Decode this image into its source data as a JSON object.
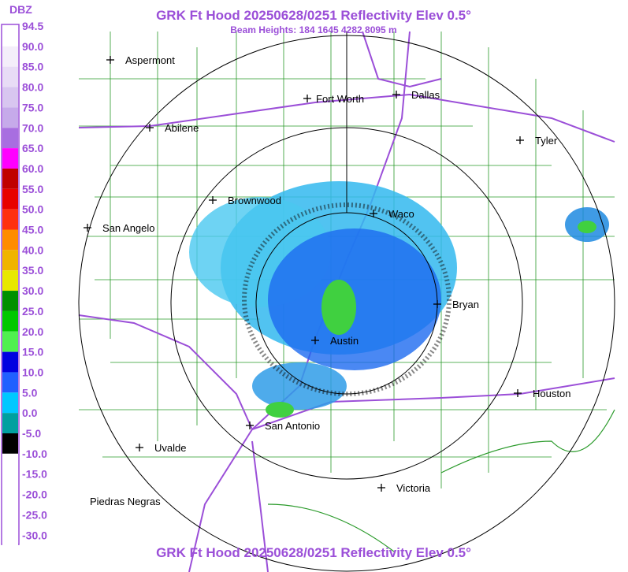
{
  "header": {
    "title": "GRK Ft Hood 20250628/0251 Reflectivity Elev 0.5°",
    "subtitle": "Beam Heights: 184 1645 4282 8095 m"
  },
  "footer": {
    "title": "GRK Ft Hood 20250628/0251 Reflectivity Elev 0.5°"
  },
  "legend": {
    "unit": "DBZ",
    "labels": [
      "94.5",
      "90.0",
      "85.0",
      "80.0",
      "75.0",
      "70.0",
      "65.0",
      "60.0",
      "55.0",
      "50.0",
      "45.0",
      "40.0",
      "35.0",
      "30.0",
      "25.0",
      "20.0",
      "15.0",
      "10.0",
      "5.0",
      "0.0",
      "-5.0",
      "-10.0",
      "-15.0",
      "-20.0",
      "-25.0",
      "-30.0"
    ],
    "colors": [
      "#ffffff",
      "#f4eefa",
      "#e8dcf6",
      "#d8c6f0",
      "#c6aaea",
      "#a86ee0",
      "#ff00ff",
      "#c00000",
      "#e80000",
      "#ff3010",
      "#ff8c00",
      "#f0b400",
      "#e8e800",
      "#009000",
      "#00c800",
      "#50f050",
      "#0000e0",
      "#2060ff",
      "#00c8ff",
      "#00a0a0",
      "#000000",
      "#ffffff",
      "#ffffff",
      "#ffffff",
      "#ffffff",
      "#ffffff"
    ]
  },
  "cities": [
    "Aspermont",
    "Fort Worth",
    "Dallas",
    "Abilene",
    "Tyler",
    "Brownwood",
    "Waco",
    "San Angelo",
    "Bryan",
    "Austin",
    "Houston",
    "San Antonio",
    "Uvalde",
    "Victoria",
    "Piedras Negras"
  ]
}
